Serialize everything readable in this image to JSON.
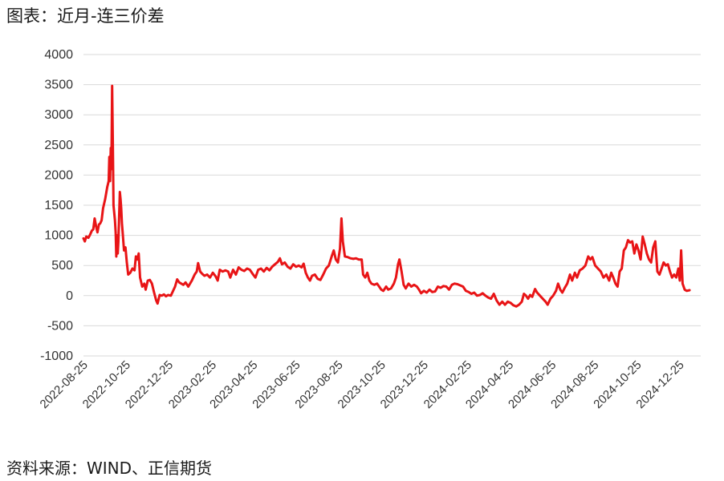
{
  "header": {
    "title": "图表：近月-连三价差"
  },
  "footer": {
    "source": "资料来源：WIND、正信期货"
  },
  "chart_data": {
    "type": "line",
    "title": "",
    "xlabel": "",
    "ylabel": "",
    "ylim": [
      -1000,
      4000
    ],
    "grid": true,
    "line_color": "#e81416",
    "grid_color": "#d9d9d9",
    "y_ticks": [
      "4000",
      "3500",
      "3000",
      "2500",
      "2000",
      "1500",
      "1000",
      "500",
      "0",
      "-500",
      "-1000"
    ],
    "x_ticks": [
      "2022-08-25",
      "2022-10-25",
      "2022-12-25",
      "2023-02-25",
      "2023-04-25",
      "2023-06-25",
      "2023-08-25",
      "2023-10-25",
      "2023-12-25",
      "2024-02-25",
      "2024-04-25",
      "2024-06-25",
      "2024-08-25",
      "2024-10-25",
      "2024-12-25"
    ],
    "x_range": [
      "2022-08-25",
      "2025-01-24"
    ],
    "series": [
      {
        "points": [
          [
            "2022-08-25",
            950
          ],
          [
            "2022-08-27",
            900
          ],
          [
            "2022-08-29",
            980
          ],
          [
            "2022-09-01",
            960
          ],
          [
            "2022-09-03",
            1000
          ],
          [
            "2022-09-06",
            1080
          ],
          [
            "2022-09-08",
            1100
          ],
          [
            "2022-09-10",
            1280
          ],
          [
            "2022-09-12",
            1150
          ],
          [
            "2022-09-14",
            1050
          ],
          [
            "2022-09-16",
            1180
          ],
          [
            "2022-09-18",
            1200
          ],
          [
            "2022-09-20",
            1250
          ],
          [
            "2022-09-22",
            1450
          ],
          [
            "2022-09-25",
            1600
          ],
          [
            "2022-09-28",
            1800
          ],
          [
            "2022-09-30",
            1900
          ],
          [
            "2022-10-01",
            2300
          ],
          [
            "2022-10-02",
            1900
          ],
          [
            "2022-10-03",
            2450
          ],
          [
            "2022-10-04",
            2100
          ],
          [
            "2022-10-05",
            3480
          ],
          [
            "2022-10-06",
            2500
          ],
          [
            "2022-10-07",
            1500
          ],
          [
            "2022-10-09",
            1250
          ],
          [
            "2022-10-10",
            1050
          ],
          [
            "2022-10-11",
            650
          ],
          [
            "2022-10-12",
            1000
          ],
          [
            "2022-10-13",
            700
          ],
          [
            "2022-10-14",
            900
          ],
          [
            "2022-10-16",
            1720
          ],
          [
            "2022-10-17",
            1600
          ],
          [
            "2022-10-18",
            1450
          ],
          [
            "2022-10-19",
            1200
          ],
          [
            "2022-10-20",
            1050
          ],
          [
            "2022-10-22",
            750
          ],
          [
            "2022-10-24",
            800
          ],
          [
            "2022-10-26",
            550
          ],
          [
            "2022-10-28",
            350
          ],
          [
            "2022-10-31",
            380
          ],
          [
            "2022-11-03",
            450
          ],
          [
            "2022-11-06",
            420
          ],
          [
            "2022-11-08",
            650
          ],
          [
            "2022-11-10",
            600
          ],
          [
            "2022-11-12",
            700
          ],
          [
            "2022-11-14",
            300
          ],
          [
            "2022-11-17",
            150
          ],
          [
            "2022-11-20",
            200
          ],
          [
            "2022-11-22",
            100
          ],
          [
            "2022-11-25",
            250
          ],
          [
            "2022-11-28",
            260
          ],
          [
            "2022-12-01",
            200
          ],
          [
            "2022-12-04",
            50
          ],
          [
            "2022-12-07",
            -80
          ],
          [
            "2022-12-09",
            -130
          ],
          [
            "2022-12-12",
            10
          ],
          [
            "2022-12-15",
            0
          ],
          [
            "2022-12-18",
            20
          ],
          [
            "2022-12-21",
            -10
          ],
          [
            "2022-12-24",
            10
          ],
          [
            "2022-12-28",
            0
          ],
          [
            "2023-01-03",
            150
          ],
          [
            "2023-01-06",
            270
          ],
          [
            "2023-01-09",
            220
          ],
          [
            "2023-01-12",
            200
          ],
          [
            "2023-01-15",
            180
          ],
          [
            "2023-01-18",
            220
          ],
          [
            "2023-01-22",
            150
          ],
          [
            "2023-01-27",
            250
          ],
          [
            "2023-01-31",
            350
          ],
          [
            "2023-02-03",
            400
          ],
          [
            "2023-02-05",
            540
          ],
          [
            "2023-02-08",
            400
          ],
          [
            "2023-02-11",
            360
          ],
          [
            "2023-02-14",
            330
          ],
          [
            "2023-02-18",
            350
          ],
          [
            "2023-02-22",
            300
          ],
          [
            "2023-02-26",
            380
          ],
          [
            "2023-03-02",
            320
          ],
          [
            "2023-03-05",
            250
          ],
          [
            "2023-03-08",
            430
          ],
          [
            "2023-03-12",
            400
          ],
          [
            "2023-03-16",
            420
          ],
          [
            "2023-03-20",
            400
          ],
          [
            "2023-03-23",
            300
          ],
          [
            "2023-03-27",
            430
          ],
          [
            "2023-03-31",
            350
          ],
          [
            "2023-04-04",
            470
          ],
          [
            "2023-04-08",
            430
          ],
          [
            "2023-04-12",
            410
          ],
          [
            "2023-04-16",
            450
          ],
          [
            "2023-04-20",
            430
          ],
          [
            "2023-04-24",
            360
          ],
          [
            "2023-04-28",
            300
          ],
          [
            "2023-05-02",
            430
          ],
          [
            "2023-05-06",
            450
          ],
          [
            "2023-05-10",
            400
          ],
          [
            "2023-05-14",
            460
          ],
          [
            "2023-05-18",
            420
          ],
          [
            "2023-05-22",
            480
          ],
          [
            "2023-05-26",
            520
          ],
          [
            "2023-05-30",
            560
          ],
          [
            "2023-06-02",
            620
          ],
          [
            "2023-06-05",
            520
          ],
          [
            "2023-06-09",
            550
          ],
          [
            "2023-06-13",
            480
          ],
          [
            "2023-06-17",
            450
          ],
          [
            "2023-06-21",
            520
          ],
          [
            "2023-06-25",
            480
          ],
          [
            "2023-06-29",
            500
          ],
          [
            "2023-07-03",
            470
          ],
          [
            "2023-07-06",
            530
          ],
          [
            "2023-07-09",
            380
          ],
          [
            "2023-07-12",
            300
          ],
          [
            "2023-07-15",
            250
          ],
          [
            "2023-07-18",
            330
          ],
          [
            "2023-07-22",
            350
          ],
          [
            "2023-07-26",
            280
          ],
          [
            "2023-07-30",
            260
          ],
          [
            "2023-08-03",
            350
          ],
          [
            "2023-08-07",
            450
          ],
          [
            "2023-08-11",
            500
          ],
          [
            "2023-08-15",
            650
          ],
          [
            "2023-08-18",
            750
          ],
          [
            "2023-08-21",
            600
          ],
          [
            "2023-08-24",
            550
          ],
          [
            "2023-08-27",
            780
          ],
          [
            "2023-08-29",
            1280
          ],
          [
            "2023-08-31",
            900
          ],
          [
            "2023-09-03",
            650
          ],
          [
            "2023-09-07",
            640
          ],
          [
            "2023-09-11",
            620
          ],
          [
            "2023-09-15",
            610
          ],
          [
            "2023-09-19",
            620
          ],
          [
            "2023-09-23",
            600
          ],
          [
            "2023-09-27",
            600
          ],
          [
            "2023-09-29",
            350
          ],
          [
            "2023-10-02",
            300
          ],
          [
            "2023-10-05",
            380
          ],
          [
            "2023-10-08",
            250
          ],
          [
            "2023-10-11",
            200
          ],
          [
            "2023-10-15",
            180
          ],
          [
            "2023-10-19",
            200
          ],
          [
            "2023-10-22",
            150
          ],
          [
            "2023-10-25",
            100
          ],
          [
            "2023-10-28",
            80
          ],
          [
            "2023-11-01",
            150
          ],
          [
            "2023-11-04",
            100
          ],
          [
            "2023-11-08",
            120
          ],
          [
            "2023-11-12",
            200
          ],
          [
            "2023-11-15",
            300
          ],
          [
            "2023-11-18",
            520
          ],
          [
            "2023-11-20",
            600
          ],
          [
            "2023-11-23",
            400
          ],
          [
            "2023-11-26",
            180
          ],
          [
            "2023-11-29",
            120
          ],
          [
            "2023-12-03",
            200
          ],
          [
            "2023-12-07",
            150
          ],
          [
            "2023-12-11",
            180
          ],
          [
            "2023-12-15",
            150
          ],
          [
            "2023-12-18",
            100
          ],
          [
            "2023-12-21",
            40
          ],
          [
            "2023-12-25",
            80
          ],
          [
            "2023-12-29",
            50
          ],
          [
            "2024-01-02",
            100
          ],
          [
            "2024-01-06",
            60
          ],
          [
            "2024-01-10",
            70
          ],
          [
            "2024-01-14",
            150
          ],
          [
            "2024-01-18",
            130
          ],
          [
            "2024-01-22",
            160
          ],
          [
            "2024-01-26",
            150
          ],
          [
            "2024-01-30",
            100
          ],
          [
            "2024-02-03",
            180
          ],
          [
            "2024-02-07",
            200
          ],
          [
            "2024-02-11",
            190
          ],
          [
            "2024-02-15",
            170
          ],
          [
            "2024-02-19",
            150
          ],
          [
            "2024-02-23",
            80
          ],
          [
            "2024-02-27",
            60
          ],
          [
            "2024-03-02",
            30
          ],
          [
            "2024-03-06",
            50
          ],
          [
            "2024-03-10",
            0
          ],
          [
            "2024-03-14",
            10
          ],
          [
            "2024-03-18",
            40
          ],
          [
            "2024-03-22",
            0
          ],
          [
            "2024-03-26",
            -30
          ],
          [
            "2024-03-30",
            -50
          ],
          [
            "2024-04-03",
            30
          ],
          [
            "2024-04-07",
            -80
          ],
          [
            "2024-04-11",
            -150
          ],
          [
            "2024-04-15",
            -100
          ],
          [
            "2024-04-19",
            -150
          ],
          [
            "2024-04-23",
            -100
          ],
          [
            "2024-04-27",
            -120
          ],
          [
            "2024-05-01",
            -160
          ],
          [
            "2024-05-05",
            -180
          ],
          [
            "2024-05-09",
            -150
          ],
          [
            "2024-05-13",
            -100
          ],
          [
            "2024-05-16",
            30
          ],
          [
            "2024-05-19",
            0
          ],
          [
            "2024-05-22",
            -50
          ],
          [
            "2024-05-25",
            10
          ],
          [
            "2024-05-28",
            -20
          ],
          [
            "2024-06-01",
            110
          ],
          [
            "2024-06-04",
            50
          ],
          [
            "2024-06-08",
            0
          ],
          [
            "2024-06-12",
            -50
          ],
          [
            "2024-06-16",
            -100
          ],
          [
            "2024-06-19",
            -150
          ],
          [
            "2024-06-23",
            -50
          ],
          [
            "2024-06-27",
            0
          ],
          [
            "2024-07-01",
            80
          ],
          [
            "2024-07-04",
            200
          ],
          [
            "2024-07-07",
            100
          ],
          [
            "2024-07-10",
            50
          ],
          [
            "2024-07-13",
            120
          ],
          [
            "2024-07-17",
            200
          ],
          [
            "2024-07-21",
            350
          ],
          [
            "2024-07-24",
            250
          ],
          [
            "2024-07-28",
            380
          ],
          [
            "2024-07-31",
            300
          ],
          [
            "2024-08-04",
            420
          ],
          [
            "2024-08-08",
            450
          ],
          [
            "2024-08-12",
            500
          ],
          [
            "2024-08-16",
            650
          ],
          [
            "2024-08-19",
            600
          ],
          [
            "2024-08-22",
            640
          ],
          [
            "2024-08-26",
            500
          ],
          [
            "2024-08-30",
            450
          ],
          [
            "2024-09-03",
            400
          ],
          [
            "2024-09-07",
            300
          ],
          [
            "2024-09-11",
            350
          ],
          [
            "2024-09-15",
            250
          ],
          [
            "2024-09-18",
            380
          ],
          [
            "2024-09-21",
            300
          ],
          [
            "2024-09-24",
            200
          ],
          [
            "2024-09-27",
            150
          ],
          [
            "2024-09-30",
            400
          ],
          [
            "2024-10-03",
            450
          ],
          [
            "2024-10-06",
            750
          ],
          [
            "2024-10-09",
            800
          ],
          [
            "2024-10-12",
            920
          ],
          [
            "2024-10-15",
            880
          ],
          [
            "2024-10-18",
            900
          ],
          [
            "2024-10-21",
            700
          ],
          [
            "2024-10-24",
            850
          ],
          [
            "2024-10-27",
            750
          ],
          [
            "2024-10-30",
            600
          ],
          [
            "2024-11-02",
            980
          ],
          [
            "2024-11-05",
            850
          ],
          [
            "2024-11-08",
            700
          ],
          [
            "2024-11-11",
            600
          ],
          [
            "2024-11-14",
            550
          ],
          [
            "2024-11-17",
            800
          ],
          [
            "2024-11-20",
            900
          ],
          [
            "2024-11-23",
            400
          ],
          [
            "2024-11-26",
            350
          ],
          [
            "2024-11-29",
            450
          ],
          [
            "2024-12-02",
            550
          ],
          [
            "2024-12-05",
            500
          ],
          [
            "2024-12-08",
            520
          ],
          [
            "2024-12-11",
            400
          ],
          [
            "2024-12-14",
            300
          ],
          [
            "2024-12-17",
            350
          ],
          [
            "2024-12-20",
            300
          ],
          [
            "2024-12-23",
            450
          ],
          [
            "2024-12-25",
            250
          ],
          [
            "2024-12-27",
            750
          ],
          [
            "2024-12-29",
            200
          ],
          [
            "2025-01-01",
            100
          ],
          [
            "2025-01-04",
            80
          ],
          [
            "2025-01-08",
            90
          ]
        ]
      }
    ]
  }
}
